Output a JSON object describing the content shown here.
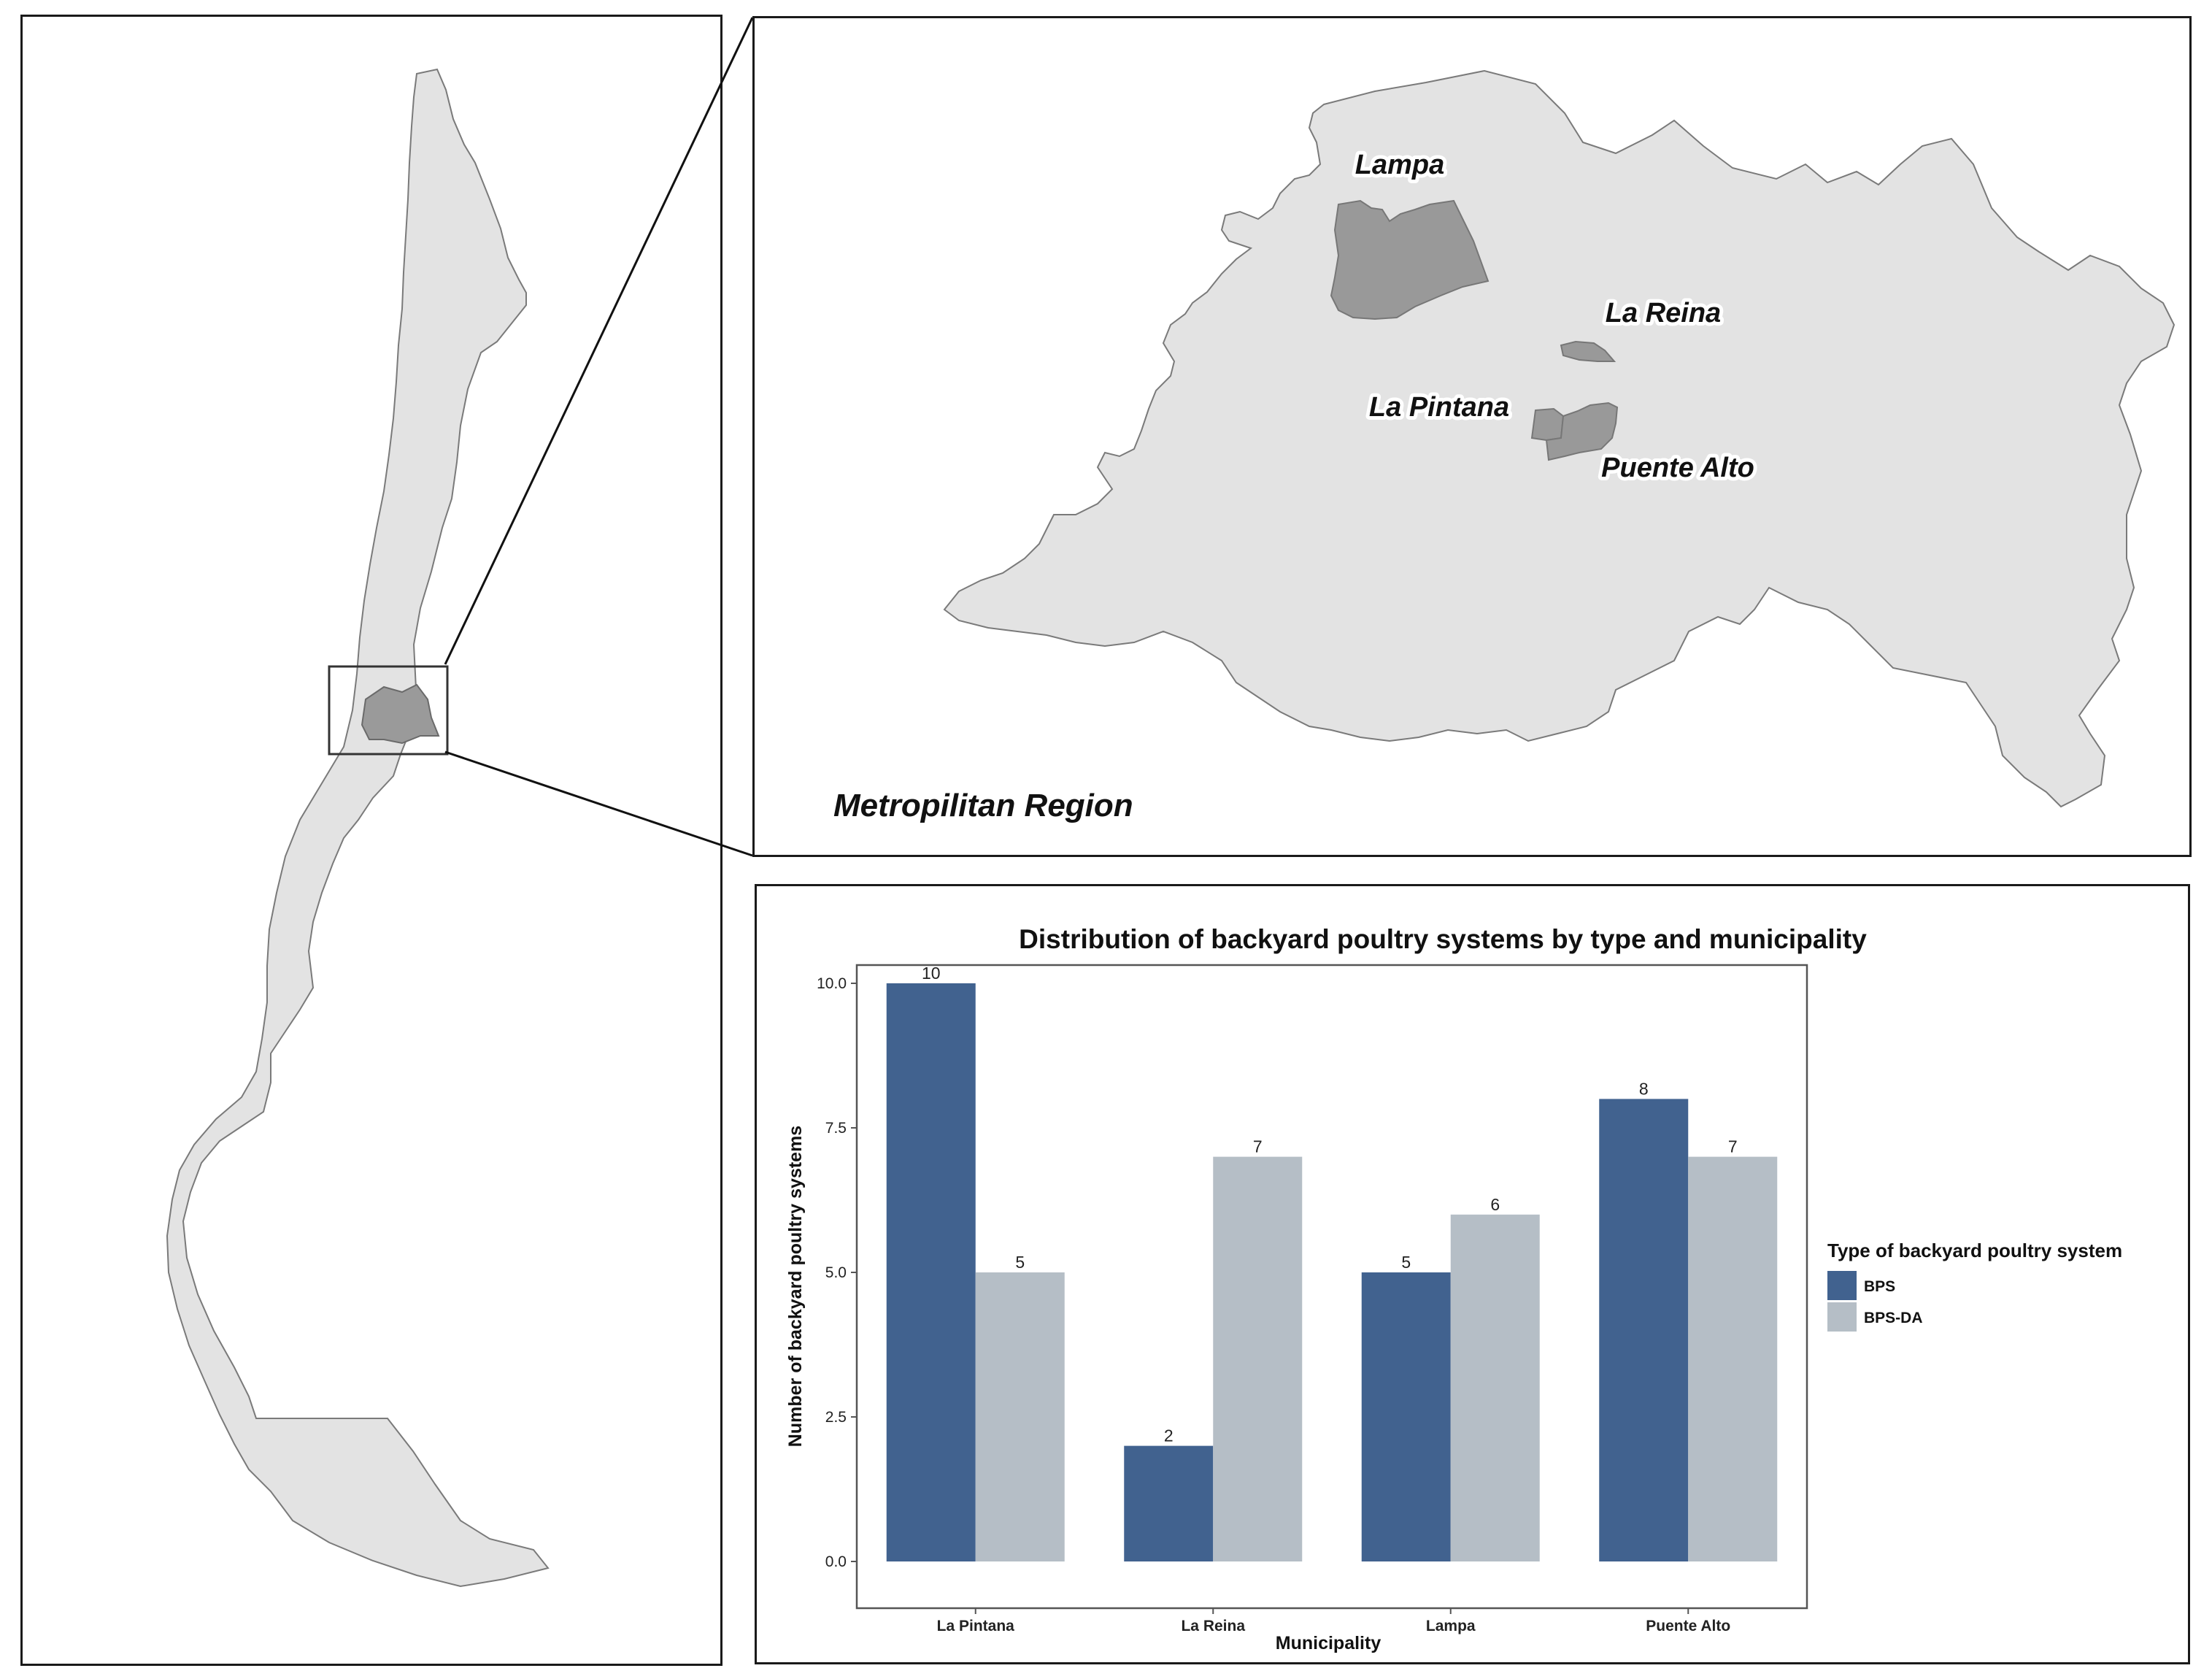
{
  "map": {
    "region_label": "Metropilitan Region",
    "municipalities": [
      {
        "id": "lampa",
        "label": "Lampa"
      },
      {
        "id": "la-reina",
        "label": "La Reina"
      },
      {
        "id": "la-pintana",
        "label": "La Pintana"
      },
      {
        "id": "puente-alto",
        "label": "Puente Alto"
      }
    ],
    "colors": {
      "land": "#e3e3e3",
      "highlight": "#9a9a9a",
      "outline": "#7a7a7a"
    }
  },
  "chart_data": {
    "type": "bar",
    "title": "Distribution of backyard poultry systems by type and municipality",
    "xlabel": "Municipality",
    "ylabel": "Number of backyard poultry systems",
    "categories": [
      "La Pintana",
      "La Reina",
      "Lampa",
      "Puente Alto"
    ],
    "series": [
      {
        "name": "BPS",
        "values": [
          10,
          2,
          5,
          8
        ],
        "color": "#41628f"
      },
      {
        "name": "BPS-DA",
        "values": [
          5,
          7,
          6,
          7
        ],
        "color": "#b5bec6"
      }
    ],
    "ylim": [
      0,
      10.5
    ],
    "yticks": [
      "0.0",
      "2.5",
      "5.0",
      "7.5",
      "10.0"
    ],
    "legend_title": "Type of backyard poultry system",
    "legend_position": "right",
    "grid": false
  }
}
